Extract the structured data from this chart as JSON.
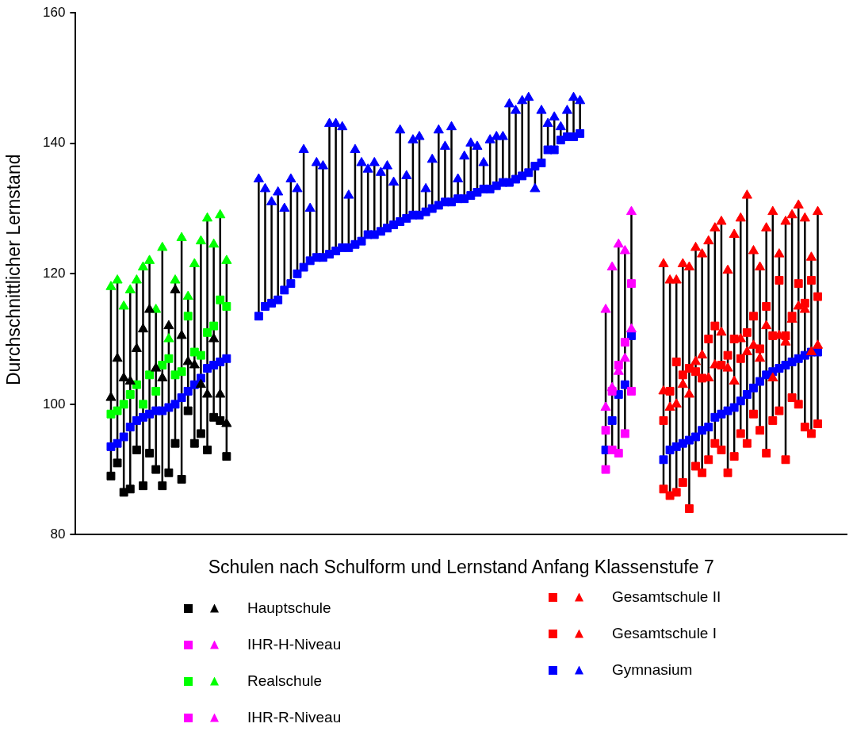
{
  "chart_data": {
    "type": "scatter",
    "xlabel": "Schulen nach Schulform und Lernstand Anfang Klassenstufe 7",
    "ylabel": "Durchschnittlicher Lernstand",
    "ylim": [
      80,
      160
    ],
    "yticks": [
      80,
      100,
      120,
      140,
      160
    ],
    "grid": false,
    "legend": "bottom",
    "tick_labels": "y",
    "categories": [
      null,
      null,
      null,
      null,
      null,
      null,
      null,
      null,
      null,
      null,
      null,
      null,
      null,
      null,
      null,
      null,
      null,
      null,
      null,
      null,
      null,
      null,
      null,
      null,
      null,
      null,
      null,
      null,
      null,
      null,
      null,
      null,
      null,
      null,
      null,
      null,
      null,
      null,
      null,
      null,
      null,
      null,
      null,
      null,
      null,
      null,
      null,
      null,
      null,
      null,
      null,
      null,
      null,
      null,
      null,
      null,
      null,
      null,
      null,
      null,
      null,
      null,
      null,
      null,
      null,
      null,
      null,
      null,
      null,
      null,
      null,
      null,
      null,
      null,
      null,
      null,
      null,
      null,
      null,
      null,
      null,
      null,
      null,
      null,
      null,
      null,
      null,
      null,
      null,
      null,
      null,
      null,
      null,
      null,
      null,
      null,
      null,
      null,
      null,
      null,
      null,
      null,
      null,
      null,
      null,
      null,
      null,
      null,
      null,
      null,
      null,
      null,
      null,
      null,
      null,
      null,
      null,
      null,
      null,
      null
    ],
    "series": [
      {
        "name": "Hauptschule",
        "color": "#000000",
        "marker": "square",
        "values": [
          null,
          null,
          null,
          null,
          null,
          89,
          91,
          86.5,
          87,
          93,
          87.5,
          92.5,
          90,
          87.5,
          89.5,
          94,
          88.5,
          99,
          94,
          95.5,
          93,
          98,
          97.5,
          92,
          null,
          null,
          null,
          null,
          null,
          null,
          null,
          null,
          null,
          null,
          null,
          null,
          null,
          null,
          null,
          null,
          null,
          null,
          null,
          null,
          null,
          null,
          null,
          null,
          null,
          null,
          null,
          null,
          null,
          null,
          null,
          null,
          null,
          null,
          null,
          null,
          null,
          null,
          null,
          null,
          null,
          null,
          null,
          null,
          null,
          null,
          null,
          null,
          null,
          null,
          null,
          null,
          null,
          null,
          null,
          null,
          null,
          null,
          null,
          null,
          null,
          null,
          null,
          null,
          null,
          null,
          null,
          null,
          null,
          null,
          null,
          null,
          null,
          null,
          null,
          null,
          null,
          null,
          null,
          null,
          null,
          null,
          null,
          null,
          null,
          null,
          null,
          null,
          null,
          null,
          null,
          null,
          null,
          null,
          null,
          null
        ]
      },
      {
        "color": "#000000",
        "marker": "triangle",
        "values": [
          null,
          null,
          null,
          null,
          null,
          101,
          107,
          104,
          103.5,
          108.5,
          111.5,
          114.5,
          105.5,
          104,
          112,
          117.5,
          110.5,
          106.5,
          106,
          103,
          101.5,
          110,
          101.5,
          97,
          null,
          null,
          null,
          null,
          null,
          null,
          null,
          null,
          null,
          null,
          null,
          null,
          null,
          null,
          null,
          null,
          null,
          null,
          null,
          null,
          null,
          null,
          null,
          null,
          null,
          null,
          null,
          null,
          null,
          null,
          null,
          null,
          null,
          null,
          null,
          null,
          null,
          null,
          null,
          null,
          null,
          null,
          null,
          null,
          null,
          null,
          null,
          null,
          null,
          null,
          null,
          null,
          null,
          null,
          null,
          null,
          null,
          null,
          null,
          null,
          null,
          null,
          null,
          null,
          null,
          null,
          null,
          null,
          null,
          null,
          null,
          null,
          null,
          null,
          null,
          null,
          null,
          null,
          null,
          null,
          null,
          null,
          null,
          null,
          null,
          null,
          null,
          null,
          null,
          null,
          null,
          null,
          null,
          null,
          null,
          null
        ]
      },
      {
        "name": "IHR-H-Niveau",
        "color": "#ff00ff",
        "marker": "square",
        "values": [
          null,
          null,
          null,
          null,
          null,
          null,
          null,
          null,
          null,
          null,
          null,
          null,
          null,
          null,
          null,
          null,
          null,
          null,
          null,
          null,
          null,
          null,
          null,
          null,
          null,
          null,
          null,
          null,
          null,
          null,
          null,
          null,
          null,
          null,
          null,
          null,
          null,
          null,
          null,
          null,
          null,
          null,
          null,
          null,
          null,
          null,
          null,
          null,
          null,
          null,
          null,
          null,
          null,
          null,
          null,
          null,
          null,
          null,
          null,
          null,
          null,
          null,
          null,
          null,
          null,
          null,
          null,
          null,
          null,
          null,
          null,
          null,
          null,
          null,
          null,
          null,
          null,
          null,
          null,
          null,
          null,
          null,
          90,
          93,
          92.5,
          95.5,
          102,
          null,
          null,
          null,
          null,
          null,
          null,
          null,
          null,
          null,
          null,
          null,
          null,
          null,
          null,
          null,
          null,
          null,
          null,
          null,
          null,
          null,
          null,
          null,
          null,
          null,
          null,
          null,
          null,
          null,
          null,
          null,
          null,
          null
        ]
      },
      {
        "color": "#ff00ff",
        "marker": "triangle",
        "values": [
          null,
          null,
          null,
          null,
          null,
          null,
          null,
          null,
          null,
          null,
          null,
          null,
          null,
          null,
          null,
          null,
          null,
          null,
          null,
          null,
          null,
          null,
          null,
          null,
          null,
          null,
          null,
          null,
          null,
          null,
          null,
          null,
          null,
          null,
          null,
          null,
          null,
          null,
          null,
          null,
          null,
          null,
          null,
          null,
          null,
          null,
          null,
          null,
          null,
          null,
          null,
          null,
          null,
          null,
          null,
          null,
          null,
          null,
          null,
          null,
          null,
          null,
          null,
          null,
          null,
          null,
          null,
          null,
          null,
          null,
          null,
          null,
          null,
          null,
          null,
          null,
          null,
          null,
          null,
          null,
          null,
          null,
          99.5,
          102.5,
          105,
          107,
          111.5,
          null,
          null,
          null,
          null,
          null,
          null,
          null,
          null,
          null,
          null,
          null,
          null,
          null,
          null,
          null,
          null,
          null,
          null,
          null,
          null,
          null,
          null,
          null,
          null,
          null,
          null,
          null,
          null,
          null,
          null,
          null,
          null,
          null
        ]
      },
      {
        "name": "Realschule",
        "color": "#00ff00",
        "marker": "square",
        "values": [
          null,
          null,
          null,
          null,
          null,
          98.5,
          99,
          100,
          101.5,
          103,
          100,
          104.5,
          102,
          106,
          107,
          104.5,
          105,
          113.5,
          108,
          107.5,
          111,
          112,
          116,
          115,
          null,
          null,
          null,
          null,
          null,
          null,
          null,
          null,
          null,
          null,
          null,
          null,
          null,
          null,
          null,
          null,
          null,
          null,
          null,
          null,
          null,
          null,
          null,
          null,
          null,
          null,
          null,
          null,
          null,
          null,
          null,
          null,
          null,
          null,
          null,
          null,
          null,
          null,
          null,
          null,
          null,
          null,
          null,
          null,
          null,
          null,
          null,
          null,
          null,
          null,
          null,
          null,
          null,
          null,
          null,
          null,
          null,
          null,
          null,
          null,
          null,
          null,
          null,
          null,
          null,
          null,
          null,
          null,
          null,
          null,
          null,
          null,
          null,
          null,
          null,
          null,
          null,
          null,
          null,
          null,
          null,
          null,
          null,
          null,
          null,
          null,
          null,
          null,
          null,
          null,
          null,
          null,
          null,
          null,
          null,
          null
        ]
      },
      {
        "color": "#00ff00",
        "marker": "triangle",
        "values": [
          null,
          null,
          null,
          null,
          null,
          118,
          119,
          115,
          117.5,
          119,
          121,
          122,
          114.5,
          124,
          110,
          119,
          125.5,
          116.5,
          121.5,
          125,
          128.5,
          124.5,
          129,
          122,
          null,
          null,
          null,
          null,
          null,
          null,
          null,
          null,
          null,
          null,
          null,
          null,
          null,
          null,
          null,
          null,
          null,
          null,
          null,
          null,
          null,
          null,
          null,
          null,
          null,
          null,
          null,
          null,
          null,
          null,
          null,
          null,
          null,
          null,
          null,
          null,
          null,
          null,
          null,
          null,
          null,
          null,
          null,
          null,
          null,
          null,
          null,
          null,
          null,
          null,
          null,
          null,
          null,
          null,
          null,
          null,
          null,
          null,
          null,
          null,
          null,
          null,
          null,
          null,
          null,
          null,
          null,
          null,
          null,
          null,
          null,
          null,
          null,
          null,
          null,
          null,
          null,
          null,
          null,
          null,
          null,
          null,
          null,
          null,
          null,
          null,
          null,
          null,
          null,
          null,
          null,
          null,
          null,
          null,
          null,
          null
        ]
      },
      {
        "name": "IHR-R-Niveau",
        "color": "#ff00ff",
        "marker": "square",
        "values": [
          null,
          null,
          null,
          null,
          null,
          null,
          null,
          null,
          null,
          null,
          null,
          null,
          null,
          null,
          null,
          null,
          null,
          null,
          null,
          null,
          null,
          null,
          null,
          null,
          null,
          null,
          null,
          null,
          null,
          null,
          null,
          null,
          null,
          null,
          null,
          null,
          null,
          null,
          null,
          null,
          null,
          null,
          null,
          null,
          null,
          null,
          null,
          null,
          null,
          null,
          null,
          null,
          null,
          null,
          null,
          null,
          null,
          null,
          null,
          null,
          null,
          null,
          null,
          null,
          null,
          null,
          null,
          null,
          null,
          null,
          null,
          null,
          null,
          null,
          null,
          null,
          null,
          null,
          null,
          null,
          null,
          null,
          96,
          102,
          106,
          109.5,
          118.5,
          null,
          null,
          null,
          null,
          null,
          null,
          null,
          null,
          null,
          null,
          null,
          null,
          null,
          null,
          null,
          null,
          null,
          null,
          null,
          null,
          null,
          null,
          null,
          null,
          null,
          null,
          null,
          null,
          null,
          null,
          null,
          null,
          null
        ]
      },
      {
        "color": "#ff00ff",
        "marker": "triangle",
        "values": [
          null,
          null,
          null,
          null,
          null,
          null,
          null,
          null,
          null,
          null,
          null,
          null,
          null,
          null,
          null,
          null,
          null,
          null,
          null,
          null,
          null,
          null,
          null,
          null,
          null,
          null,
          null,
          null,
          null,
          null,
          null,
          null,
          null,
          null,
          null,
          null,
          null,
          null,
          null,
          null,
          null,
          null,
          null,
          null,
          null,
          null,
          null,
          null,
          null,
          null,
          null,
          null,
          null,
          null,
          null,
          null,
          null,
          null,
          null,
          null,
          null,
          null,
          null,
          null,
          null,
          null,
          null,
          null,
          null,
          null,
          null,
          null,
          null,
          null,
          null,
          null,
          null,
          null,
          null,
          null,
          null,
          null,
          114.5,
          121,
          124.5,
          123.5,
          129.5,
          null,
          null,
          null,
          null,
          null,
          null,
          null,
          null,
          null,
          null,
          null,
          null,
          null,
          null,
          null,
          null,
          null,
          null,
          null,
          null,
          null,
          null,
          null,
          null,
          null,
          null,
          null,
          null,
          null,
          null,
          null,
          null,
          null
        ]
      },
      {
        "name": "Gesamtschule II",
        "color": "#ff0000",
        "marker": "square",
        "values": [
          null,
          null,
          null,
          null,
          null,
          null,
          null,
          null,
          null,
          null,
          null,
          null,
          null,
          null,
          null,
          null,
          null,
          null,
          null,
          null,
          null,
          null,
          null,
          null,
          null,
          null,
          null,
          null,
          null,
          null,
          null,
          null,
          null,
          null,
          null,
          null,
          null,
          null,
          null,
          null,
          null,
          null,
          null,
          null,
          null,
          null,
          null,
          null,
          null,
          null,
          null,
          null,
          null,
          null,
          null,
          null,
          null,
          null,
          null,
          null,
          null,
          null,
          null,
          null,
          null,
          null,
          null,
          null,
          null,
          null,
          null,
          null,
          null,
          null,
          null,
          null,
          null,
          null,
          null,
          null,
          null,
          null,
          null,
          null,
          null,
          null,
          null,
          null,
          null,
          null,
          null,
          87,
          86,
          86.5,
          88,
          84,
          90.5,
          89.5,
          91.5,
          94,
          93,
          89.5,
          92,
          95.5,
          94,
          98.5,
          96,
          92.5,
          97.5,
          99,
          91.5,
          101,
          100,
          96.5,
          95.5,
          97,
          null,
          null,
          null,
          null
        ]
      },
      {
        "color": "#ff0000",
        "marker": "triangle",
        "values": [
          null,
          null,
          null,
          null,
          null,
          null,
          null,
          null,
          null,
          null,
          null,
          null,
          null,
          null,
          null,
          null,
          null,
          null,
          null,
          null,
          null,
          null,
          null,
          null,
          null,
          null,
          null,
          null,
          null,
          null,
          null,
          null,
          null,
          null,
          null,
          null,
          null,
          null,
          null,
          null,
          null,
          null,
          null,
          null,
          null,
          null,
          null,
          null,
          null,
          null,
          null,
          null,
          null,
          null,
          null,
          null,
          null,
          null,
          null,
          null,
          null,
          null,
          null,
          null,
          null,
          null,
          null,
          null,
          null,
          null,
          null,
          null,
          null,
          null,
          null,
          null,
          null,
          null,
          null,
          null,
          null,
          null,
          null,
          null,
          null,
          null,
          null,
          null,
          null,
          null,
          null,
          102,
          99.5,
          100,
          103,
          101.5,
          106.5,
          107.5,
          104,
          106,
          111,
          105.5,
          103.5,
          110,
          108,
          109,
          107,
          112,
          104,
          110.5,
          109.5,
          113,
          115,
          114.5,
          108,
          109,
          null,
          null,
          null,
          null
        ]
      },
      {
        "name": "Gesamtschule I",
        "color": "#ff0000",
        "marker": "square",
        "values": [
          null,
          null,
          null,
          null,
          null,
          null,
          null,
          null,
          null,
          null,
          null,
          null,
          null,
          null,
          null,
          null,
          null,
          null,
          null,
          null,
          null,
          null,
          null,
          null,
          null,
          null,
          null,
          null,
          null,
          null,
          null,
          null,
          null,
          null,
          null,
          null,
          null,
          null,
          null,
          null,
          null,
          null,
          null,
          null,
          null,
          null,
          null,
          null,
          null,
          null,
          null,
          null,
          null,
          null,
          null,
          null,
          null,
          null,
          null,
          null,
          null,
          null,
          null,
          null,
          null,
          null,
          null,
          null,
          null,
          null,
          null,
          null,
          null,
          null,
          null,
          null,
          null,
          null,
          null,
          null,
          null,
          null,
          null,
          null,
          null,
          null,
          null,
          null,
          null,
          null,
          null,
          97.5,
          102,
          106.5,
          104.5,
          105.5,
          105,
          104,
          110,
          112,
          106,
          107.5,
          110,
          107,
          111,
          113.5,
          108.5,
          115,
          110.5,
          119,
          110.5,
          113.5,
          118.5,
          115.5,
          119,
          116.5,
          null,
          null,
          null,
          null
        ]
      },
      {
        "color": "#ff0000",
        "marker": "triangle",
        "values": [
          null,
          null,
          null,
          null,
          null,
          null,
          null,
          null,
          null,
          null,
          null,
          null,
          null,
          null,
          null,
          null,
          null,
          null,
          null,
          null,
          null,
          null,
          null,
          null,
          null,
          null,
          null,
          null,
          null,
          null,
          null,
          null,
          null,
          null,
          null,
          null,
          null,
          null,
          null,
          null,
          null,
          null,
          null,
          null,
          null,
          null,
          null,
          null,
          null,
          null,
          null,
          null,
          null,
          null,
          null,
          null,
          null,
          null,
          null,
          null,
          null,
          null,
          null,
          null,
          null,
          null,
          null,
          null,
          null,
          null,
          null,
          null,
          null,
          null,
          null,
          null,
          null,
          null,
          null,
          null,
          null,
          null,
          null,
          null,
          null,
          null,
          null,
          null,
          null,
          null,
          null,
          121.5,
          119,
          119,
          121.5,
          121,
          124,
          123,
          125,
          127,
          128,
          120.5,
          126,
          128.5,
          132,
          123.5,
          121,
          127,
          129.5,
          123,
          128,
          129,
          130.5,
          128.5,
          122.5,
          129.5,
          null,
          null,
          null,
          null
        ]
      },
      {
        "name": "Gymnasium",
        "color": "#0000ff",
        "marker": "square",
        "values": [
          null,
          null,
          null,
          null,
          null,
          93.5,
          94,
          95,
          96.5,
          97.5,
          98,
          98.5,
          99,
          99,
          99.5,
          100,
          101,
          102,
          103,
          104,
          105.5,
          106,
          106.5,
          107,
          null,
          null,
          null,
          null,
          113.5,
          115,
          115.5,
          116,
          117.5,
          118.5,
          120,
          121,
          122,
          122.5,
          122.5,
          123,
          123.5,
          124,
          124,
          124.5,
          125,
          126,
          126,
          126.5,
          127,
          127.5,
          128,
          128.5,
          129,
          129,
          129.5,
          130,
          130.5,
          131,
          131,
          131.5,
          131.5,
          132,
          132.5,
          133,
          133,
          133.5,
          134,
          134,
          134.5,
          135,
          135.5,
          136.5,
          137,
          139,
          139,
          140.5,
          141,
          141,
          141.5,
          null,
          null,
          null,
          93,
          97.5,
          101.5,
          103,
          110.5,
          null,
          null,
          null,
          null,
          91.5,
          93,
          93.5,
          94,
          94.5,
          95,
          96,
          96.5,
          98,
          98.5,
          99,
          99.5,
          100.5,
          101.5,
          102.5,
          103.5,
          104.5,
          105,
          105.5,
          106,
          106.5,
          107,
          107.5,
          108,
          108,
          null,
          null,
          null,
          null
        ]
      },
      {
        "color": "#0000ff",
        "marker": "triangle",
        "values": [
          null,
          null,
          null,
          null,
          null,
          null,
          null,
          null,
          null,
          null,
          null,
          null,
          null,
          null,
          null,
          null,
          null,
          null,
          null,
          null,
          null,
          null,
          null,
          null,
          null,
          null,
          null,
          null,
          134.5,
          133,
          131,
          132.5,
          130,
          134.5,
          133,
          139,
          130,
          137,
          136.5,
          143,
          143,
          142.5,
          132,
          139,
          137,
          136,
          137,
          135.5,
          136.5,
          134,
          142,
          135,
          140.5,
          141,
          133,
          137.5,
          142,
          139.5,
          142.5,
          134.5,
          138,
          140,
          139.5,
          137,
          140.5,
          141,
          141,
          146,
          145,
          146.5,
          147,
          133,
          145,
          143,
          144,
          142.5,
          145,
          147,
          146.5,
          null,
          null,
          null,
          null,
          null,
          null,
          null,
          null,
          null,
          null,
          null,
          null,
          null,
          null,
          null,
          null,
          null,
          null,
          null,
          null,
          null,
          null,
          null,
          null,
          null,
          null,
          null,
          null,
          null,
          null,
          null,
          null,
          null,
          null,
          null,
          null,
          null,
          null,
          null,
          null,
          null
        ]
      }
    ]
  }
}
